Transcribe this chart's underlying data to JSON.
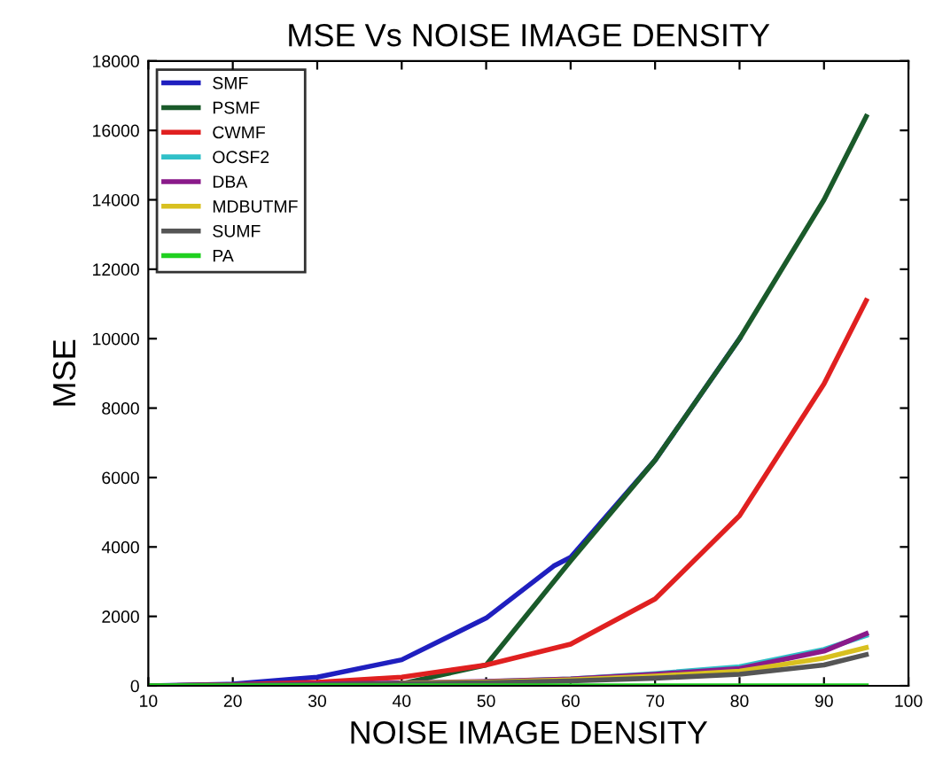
{
  "chart_data": {
    "type": "line",
    "title": "MSE Vs NOISE IMAGE DENSITY",
    "xlabel": "NOISE IMAGE DENSITY",
    "ylabel": "MSE",
    "x": [
      10,
      20,
      30,
      40,
      50,
      60,
      70,
      80,
      90,
      95
    ],
    "series": [
      {
        "name": "SMF",
        "color": "#1f1fbf",
        "x": [
          10,
          20,
          30,
          40,
          50,
          58,
          60,
          70,
          80
        ],
        "values": [
          0,
          50,
          250,
          750,
          1950,
          3450,
          3700,
          6500,
          10000
        ]
      },
      {
        "name": "PSMF",
        "color": "#1a5a2a",
        "values": [
          0,
          20,
          40,
          60,
          600,
          3600,
          6500,
          10000,
          14000,
          16400
        ]
      },
      {
        "name": "CWMF",
        "color": "#e02020",
        "values": [
          0,
          30,
          100,
          250,
          600,
          1200,
          2500,
          4900,
          8700,
          11100
        ]
      },
      {
        "name": "OCSF2",
        "color": "#30c0c8",
        "values": [
          null,
          null,
          null,
          null,
          120,
          200,
          350,
          550,
          1050,
          1450
        ]
      },
      {
        "name": "DBA",
        "color": "#8a1a8a",
        "values": [
          0,
          20,
          50,
          80,
          130,
          200,
          330,
          500,
          1000,
          1500
        ]
      },
      {
        "name": "MDBUTMF",
        "color": "#d8c020",
        "values": [
          null,
          null,
          null,
          70,
          110,
          170,
          280,
          420,
          800,
          1100
        ]
      },
      {
        "name": "SUMF",
        "color": "#555555",
        "values": [
          0,
          20,
          30,
          60,
          90,
          140,
          220,
          330,
          600,
          900
        ]
      },
      {
        "name": "PA",
        "color": "#20d020",
        "values": [
          0,
          0,
          0,
          0,
          0,
          0,
          0,
          0,
          0,
          0
        ]
      }
    ],
    "xlim": [
      10,
      100
    ],
    "xticks": [
      10,
      20,
      30,
      40,
      50,
      60,
      70,
      80,
      90,
      100
    ],
    "ylim": [
      0,
      18000
    ],
    "yticks": [
      0,
      2000,
      4000,
      6000,
      8000,
      10000,
      12000,
      14000,
      16000,
      18000
    ],
    "grid": false,
    "legend": "top left",
    "marker": "none",
    "line_style": "solid"
  }
}
